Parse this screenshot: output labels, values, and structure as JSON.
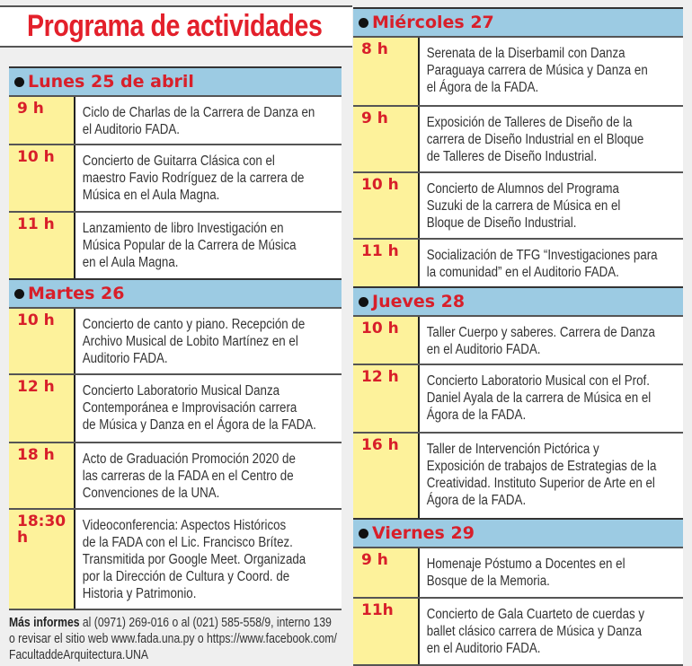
{
  "title": "Programa de actividades",
  "colors": {
    "title": "#e3202b",
    "day_header_bg": "#9ccbe3",
    "time_bg": "#fdf29b",
    "time_text": "#d81f2a"
  },
  "left_column": [
    {
      "day": "Lunes 25 de abril",
      "events": [
        {
          "time": "9 h",
          "text": "Ciclo de Charlas de la Carrera de Danza en\nel Auditorio FADA."
        },
        {
          "time": "10 h",
          "text": "Concierto de Guitarra Clásica con el\nmaestro Favio Rodríguez de la carrera de\nMúsica en el Aula Magna."
        },
        {
          "time": "11 h",
          "text": "Lanzamiento de libro Investigación en\nMúsica Popular de la Carrera de Música\nen el Aula Magna."
        }
      ]
    },
    {
      "day": "Martes 26",
      "events": [
        {
          "time": "10 h",
          "text": "Concierto de canto y piano. Recepción de\nArchivo Musical de Lobito Martínez en el\nAuditorio FADA."
        },
        {
          "time": "12 h",
          "text": "Concierto Laboratorio Musical Danza\nContemporánea e Improvisación carrera\nde Música y Danza en el Ágora de la FADA."
        },
        {
          "time": "18 h",
          "text": "Acto de Graduación Promoción 2020 de\nlas carreras de la FADA en el Centro de\nConvenciones de la UNA."
        },
        {
          "time": "18:30 h",
          "text": "Videoconferencia: Aspectos Históricos\nde la FADA con el Lic. Francisco Brítez.\nTransmitida por Google Meet. Organizada\npor la Dirección de Cultura y Coord. de\nHistoria y Patrimonio."
        }
      ]
    }
  ],
  "right_column": [
    {
      "day": "Miércoles 27",
      "events": [
        {
          "time": "8 h",
          "text": "Serenata de la Diserbamil con Danza\nParaguaya carrera de Música y Danza en\nel Ágora de la FADA."
        },
        {
          "time": "9 h",
          "text": "Exposición de Talleres de Diseño de la\ncarrera de Diseño Industrial en el Bloque\nde Talleres de Diseño Industrial."
        },
        {
          "time": "10 h",
          "text": "Concierto de Alumnos del Programa\nSuzuki de la carrera de Música en el\nBloque de Diseño Industrial."
        },
        {
          "time": "11 h",
          "text": "Socialización de TFG “Investigaciones para\nla comunidad” en el Auditorio FADA."
        }
      ]
    },
    {
      "day": "Jueves 28",
      "events": [
        {
          "time": "10 h",
          "text": "Taller Cuerpo y saberes. Carrera de Danza\nen el Auditorio FADA."
        },
        {
          "time": "12 h",
          "text": "Concierto Laboratorio Musical con el Prof.\nDaniel Ayala de la carrera de Música en el\nÁgora de la FADA."
        },
        {
          "time": "16 h",
          "text": "Taller de Intervención Pictórica y\nExposición de trabajos de Estrategias de la\nCreatividad. Instituto Superior de Arte en el\nÁgora de la FADA."
        }
      ]
    },
    {
      "day": "Viernes 29",
      "events": [
        {
          "time": "9 h",
          "text": "Homenaje Póstumo a Docentes en el\nBosque de la Memoria."
        },
        {
          "time": "11h",
          "text": "Concierto de Gala Cuarteto de cuerdas y\nballet clásico carrera de Música y Danza\nen el Auditorio FADA."
        }
      ]
    }
  ],
  "footer": {
    "bold": "Más informes",
    "text": " al (0971) 269-016 o al (021) 585-558/9, interno 139\no revisar el sitio web www.fada.una.py o https://www.facebook.com/\nFacultaddeArquitectura.UNA"
  }
}
